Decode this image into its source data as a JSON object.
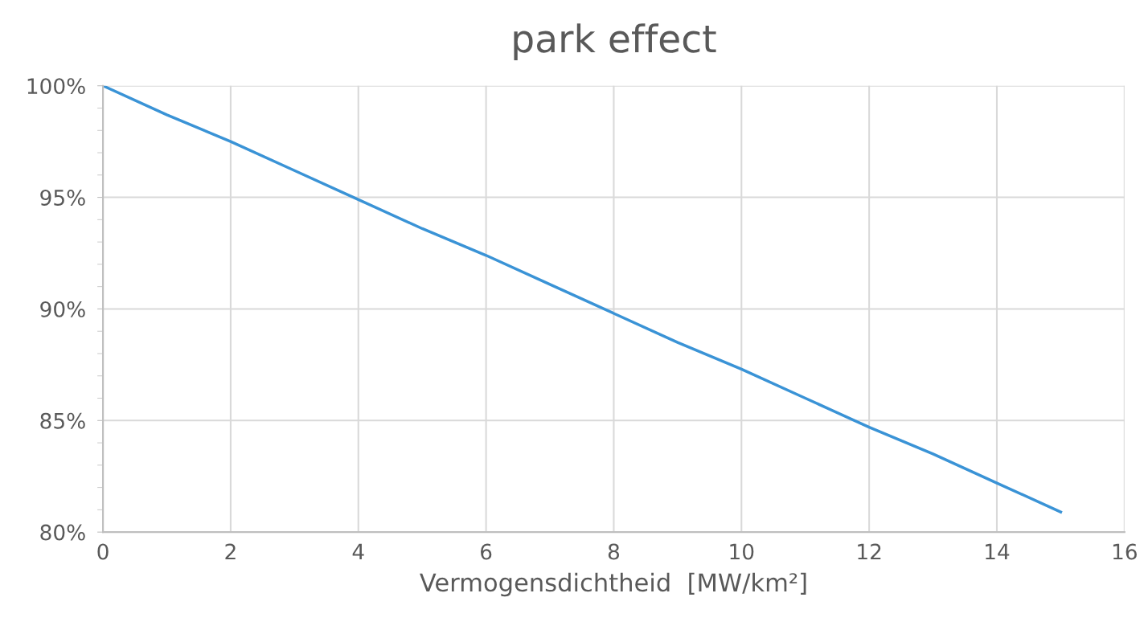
{
  "chart_data": {
    "type": "line",
    "title": "park effect",
    "xlabel": "Vermogensdichtheid  [MW/km²]",
    "x": [
      0,
      1,
      2,
      3,
      4,
      5,
      6,
      7,
      8,
      9,
      10,
      11,
      12,
      13,
      14,
      15
    ],
    "series": [
      {
        "color": "#3a93d6",
        "values": [
          100,
          98.7,
          97.5,
          96.2,
          94.9,
          93.6,
          92.4,
          91.1,
          89.8,
          88.5,
          87.3,
          86.0,
          84.7,
          83.5,
          82.2,
          80.9
        ]
      }
    ],
    "xlim": [
      0,
      16
    ],
    "xticks": [
      0,
      2,
      4,
      6,
      8,
      10,
      12,
      14,
      16
    ],
    "ylim": [
      80,
      100
    ],
    "yticks": [
      {
        "value": 80,
        "label": "80%"
      },
      {
        "value": 85,
        "label": "85%"
      },
      {
        "value": 90,
        "label": "90%"
      },
      {
        "value": 95,
        "label": "95%"
      },
      {
        "value": 100,
        "label": "100%"
      }
    ],
    "grid": true,
    "marker": "none",
    "line_style": "solid",
    "legend": false
  }
}
